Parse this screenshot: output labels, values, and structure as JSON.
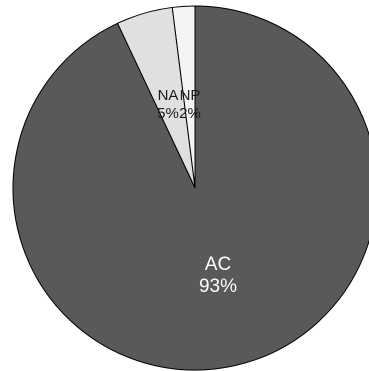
{
  "chart_data": {
    "type": "pie",
    "title": "",
    "slices": [
      {
        "label": "AC",
        "percent_label": "93%",
        "value": 93,
        "color": "#595959"
      },
      {
        "label": "NA",
        "percent_label": "5%",
        "value": 5,
        "color": "#e0e0e0"
      },
      {
        "label": "NP",
        "percent_label": "2%",
        "value": 2,
        "color": "#f4f4f4"
      }
    ],
    "start": "12 o'clock, clockwise",
    "legend": "none"
  }
}
